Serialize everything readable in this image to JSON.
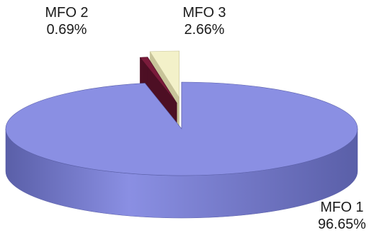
{
  "chart_data": {
    "type": "pie",
    "style": "3d-exploded",
    "slices": [
      {
        "label": "MFO 1",
        "value": 96.65,
        "display": "96.65%",
        "color": "#8a8fe3",
        "side": "#5a5fa8"
      },
      {
        "label": "MFO 2",
        "value": 0.69,
        "display": "0.69%",
        "color": "#7a1b3b",
        "side": "#4d0f24"
      },
      {
        "label": "MFO 3",
        "value": 2.66,
        "display": "2.66%",
        "color": "#f3f1c9",
        "side": "#c8c49a"
      }
    ]
  }
}
